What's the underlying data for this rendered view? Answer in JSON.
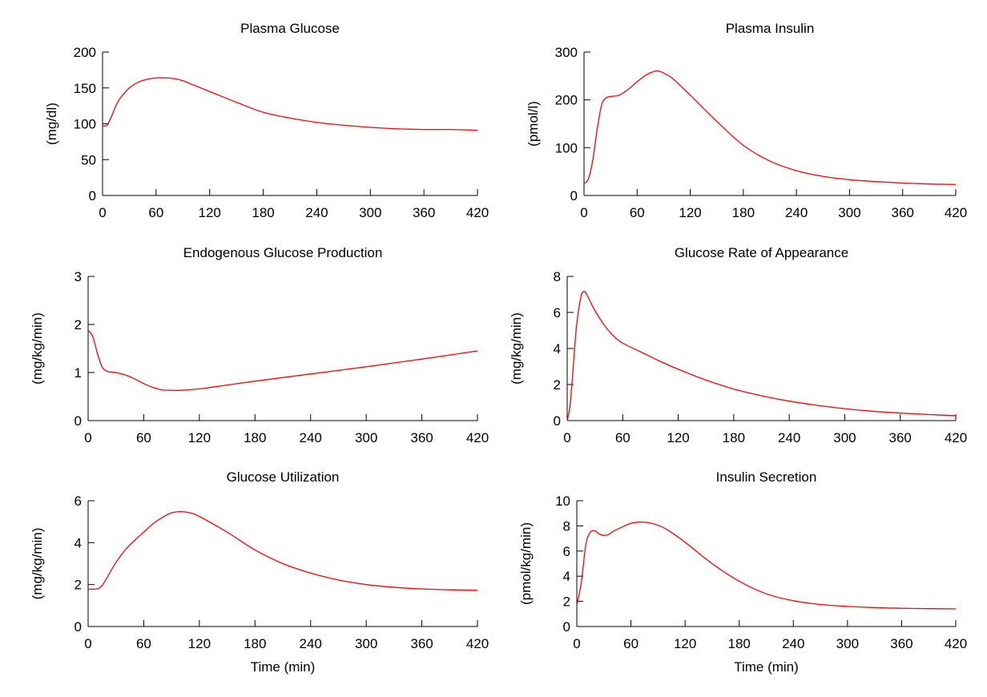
{
  "chart_data": [
    {
      "type": "line",
      "title": "Plasma Glucose",
      "xlabel": "",
      "ylabel": "(mg/dl)",
      "xlim": [
        0,
        420
      ],
      "ylim": [
        0,
        200
      ],
      "xticks": [
        0,
        60,
        120,
        180,
        240,
        300,
        360,
        420
      ],
      "yticks": [
        0,
        50,
        100,
        150,
        200
      ],
      "grid": false,
      "color": "#ff0000",
      "series": [
        {
          "x": [
            0,
            5,
            10,
            15,
            20,
            30,
            40,
            50,
            60,
            70,
            80,
            90,
            100,
            120,
            150,
            180,
            210,
            240,
            270,
            300,
            330,
            360,
            390,
            420
          ],
          "y": [
            97,
            98,
            110,
            125,
            136,
            150,
            158,
            162,
            164,
            164,
            163,
            160,
            155,
            145,
            130,
            116,
            108,
            102,
            98,
            95,
            93,
            92,
            92,
            91
          ]
        }
      ]
    },
    {
      "type": "line",
      "title": "Plasma Insulin",
      "xlabel": "",
      "ylabel": "(pmol/l)",
      "xlim": [
        0,
        420
      ],
      "ylim": [
        0,
        300
      ],
      "xticks": [
        0,
        60,
        120,
        180,
        240,
        300,
        360,
        420
      ],
      "yticks": [
        0,
        100,
        200,
        300
      ],
      "grid": false,
      "color": "#ff0000",
      "series": [
        {
          "x": [
            0,
            5,
            10,
            15,
            20,
            25,
            30,
            35,
            40,
            50,
            60,
            70,
            80,
            85,
            90,
            100,
            120,
            150,
            180,
            210,
            240,
            270,
            300,
            330,
            360,
            390,
            420
          ],
          "y": [
            25,
            35,
            75,
            140,
            190,
            204,
            207,
            208,
            210,
            222,
            238,
            252,
            260,
            260,
            256,
            245,
            210,
            155,
            105,
            72,
            52,
            40,
            33,
            29,
            26,
            24,
            23
          ]
        }
      ]
    },
    {
      "type": "line",
      "title": "Endogenous Glucose Production",
      "xlabel": "",
      "ylabel": "(mg/kg/min)",
      "xlim": [
        0,
        420
      ],
      "ylim": [
        0,
        3
      ],
      "xticks": [
        0,
        60,
        120,
        180,
        240,
        300,
        360,
        420
      ],
      "yticks": [
        0,
        1,
        2,
        3
      ],
      "grid": false,
      "color": "#ff0000",
      "series": [
        {
          "x": [
            0,
            5,
            10,
            15,
            20,
            25,
            30,
            40,
            50,
            60,
            70,
            80,
            90,
            100,
            120,
            150,
            180,
            240,
            300,
            360,
            420
          ],
          "y": [
            1.88,
            1.75,
            1.4,
            1.12,
            1.03,
            1.01,
            1.0,
            0.95,
            0.87,
            0.77,
            0.69,
            0.64,
            0.63,
            0.63,
            0.66,
            0.74,
            0.82,
            0.97,
            1.12,
            1.28,
            1.45
          ]
        }
      ]
    },
    {
      "type": "line",
      "title": "Glucose Rate of Appearance",
      "xlabel": "",
      "ylabel": "(mg/kg/min)",
      "xlim": [
        0,
        420
      ],
      "ylim": [
        0,
        8
      ],
      "xticks": [
        0,
        60,
        120,
        180,
        240,
        300,
        360,
        420
      ],
      "yticks": [
        0,
        2,
        4,
        6,
        8
      ],
      "grid": false,
      "color": "#ff0000",
      "series": [
        {
          "x": [
            0,
            3,
            6,
            10,
            15,
            18,
            20,
            25,
            30,
            40,
            50,
            60,
            80,
            100,
            120,
            150,
            180,
            210,
            240,
            270,
            300,
            330,
            360,
            390,
            420
          ],
          "y": [
            0,
            0.8,
            2.6,
            5.2,
            6.9,
            7.15,
            7.1,
            6.6,
            6.1,
            5.3,
            4.7,
            4.3,
            3.8,
            3.3,
            2.85,
            2.25,
            1.75,
            1.38,
            1.08,
            0.85,
            0.66,
            0.52,
            0.42,
            0.34,
            0.27
          ]
        }
      ]
    },
    {
      "type": "line",
      "title": "Glucose Utilization",
      "xlabel": "Time (min)",
      "ylabel": "(mg/kg/min)",
      "xlim": [
        0,
        420
      ],
      "ylim": [
        0,
        6
      ],
      "xticks": [
        0,
        60,
        120,
        180,
        240,
        300,
        360,
        420
      ],
      "yticks": [
        0,
        2,
        4,
        6
      ],
      "grid": false,
      "color": "#ff0000",
      "series": [
        {
          "x": [
            0,
            10,
            15,
            20,
            30,
            40,
            50,
            60,
            70,
            80,
            90,
            100,
            110,
            120,
            150,
            180,
            210,
            240,
            270,
            300,
            330,
            360,
            390,
            420
          ],
          "y": [
            1.78,
            1.8,
            1.95,
            2.3,
            3.05,
            3.65,
            4.1,
            4.5,
            4.9,
            5.2,
            5.42,
            5.48,
            5.42,
            5.25,
            4.5,
            3.65,
            3.0,
            2.55,
            2.22,
            2.0,
            1.87,
            1.79,
            1.75,
            1.73
          ]
        }
      ]
    },
    {
      "type": "line",
      "title": "Insulin Secretion",
      "xlabel": "Time (min)",
      "ylabel": "(pmol/kg/min)",
      "xlim": [
        0,
        420
      ],
      "ylim": [
        0,
        10
      ],
      "xticks": [
        0,
        60,
        120,
        180,
        240,
        300,
        360,
        420
      ],
      "yticks": [
        0,
        2,
        4,
        6,
        8,
        10
      ],
      "grid": false,
      "color": "#ff0000",
      "series": [
        {
          "x": [
            0,
            5,
            10,
            15,
            20,
            25,
            30,
            35,
            40,
            50,
            60,
            70,
            80,
            90,
            100,
            120,
            150,
            180,
            210,
            240,
            270,
            300,
            330,
            360,
            390,
            420
          ],
          "y": [
            1.7,
            3.5,
            6.5,
            7.5,
            7.6,
            7.35,
            7.25,
            7.3,
            7.55,
            7.9,
            8.2,
            8.3,
            8.25,
            8.05,
            7.7,
            6.7,
            5.0,
            3.6,
            2.6,
            2.05,
            1.75,
            1.6,
            1.5,
            1.45,
            1.42,
            1.4
          ]
        }
      ]
    }
  ]
}
